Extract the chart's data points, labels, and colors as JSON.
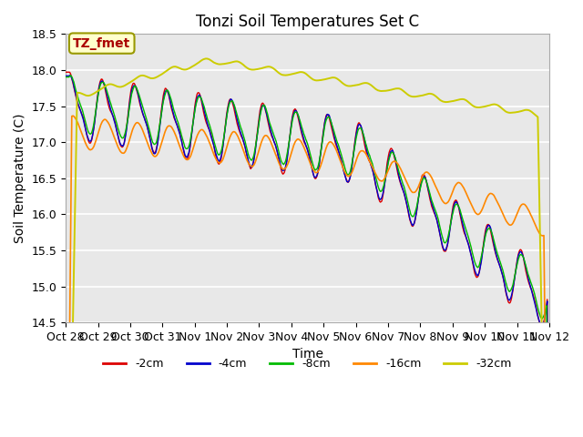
{
  "title": "Tonzi Soil Temperatures Set C",
  "xlabel": "Time",
  "ylabel": "Soil Temperature (C)",
  "ylim": [
    14.5,
    18.5
  ],
  "legend_labels": [
    "-2cm",
    "-4cm",
    "-8cm",
    "-16cm",
    "-32cm"
  ],
  "legend_colors": [
    "#dd0000",
    "#0000cc",
    "#00bb00",
    "#ff8800",
    "#cccc00"
  ],
  "xtick_labels": [
    "Oct 28",
    "Oct 29",
    "Oct 30",
    "Oct 31",
    "Nov 1",
    "Nov 2",
    "Nov 3",
    "Nov 4",
    "Nov 5",
    "Nov 6",
    "Nov 7",
    "Nov 8",
    "Nov 9",
    "Nov 10",
    "Nov 11",
    "Nov 12"
  ],
  "annotation_text": "TZ_fmet",
  "annotation_color": "#aa0000",
  "annotation_bg": "#ffffcc",
  "annotation_border": "#999900"
}
